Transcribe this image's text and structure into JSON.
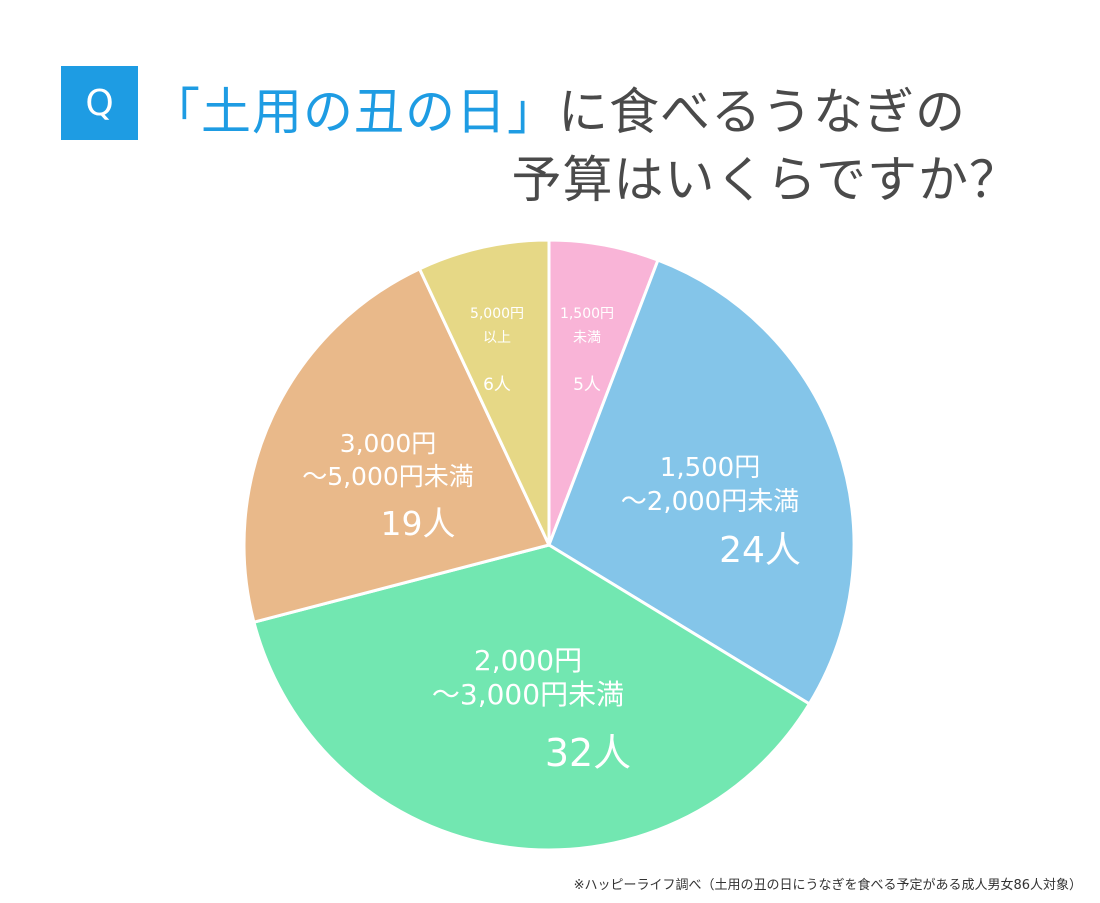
{
  "header": {
    "badge": "Q",
    "title_highlight": "「土用の丑の日」",
    "title_rest": "に食べるうなぎの",
    "title_line2": "予算はいくらですか？"
  },
  "footnote": "※ハッピーライフ調べ（土用の丑の日にうなぎを食べる予定がある成人男女86人対象）",
  "colors": {
    "accent": "#1e9ce3",
    "title": "#4a4a4a"
  },
  "chart_data": {
    "type": "pie",
    "unit": "人",
    "total": 86,
    "slices": [
      {
        "label_lines": [
          "1,500円",
          "未満"
        ],
        "value": 5,
        "value_label": "5人",
        "color": "#f9b4d7"
      },
      {
        "label_lines": [
          "1,500円",
          "～2,000円未満"
        ],
        "value": 24,
        "value_label": "24人",
        "color": "#84c5e9"
      },
      {
        "label_lines": [
          "2,000円",
          "～3,000円未満"
        ],
        "value": 32,
        "value_label": "32人",
        "color": "#72e7b1"
      },
      {
        "label_lines": [
          "3,000円",
          "～5,000円未満"
        ],
        "value": 19,
        "value_label": "19人",
        "color": "#e9b98a"
      },
      {
        "label_lines": [
          "5,000円",
          "以上"
        ],
        "value": 6,
        "value_label": "6人",
        "color": "#e6d886"
      }
    ]
  }
}
